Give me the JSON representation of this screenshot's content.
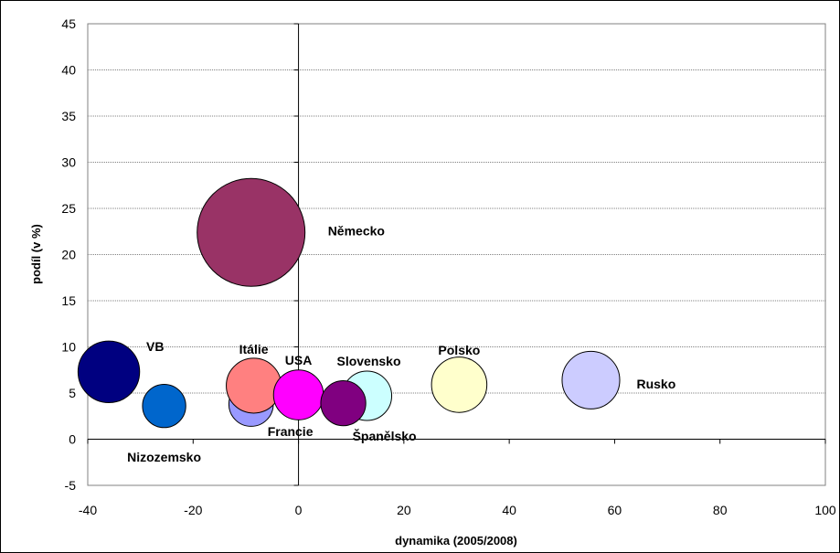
{
  "chart_data": {
    "type": "bubble",
    "xlabel": "dynamika (2005/2008)",
    "ylabel": "podíl (v %)",
    "xlim": [
      -40,
      100
    ],
    "ylim": [
      -5,
      45
    ],
    "xticks": [
      -40,
      -20,
      0,
      20,
      40,
      60,
      80,
      100
    ],
    "yticks": [
      -5,
      0,
      5,
      10,
      15,
      20,
      25,
      30,
      35,
      40,
      45
    ],
    "grid": "horizontal",
    "points": [
      {
        "label": "Německo",
        "x": -9,
        "y": 22.4,
        "size": 22.4,
        "color": "#993366"
      },
      {
        "label": "VB",
        "x": -36,
        "y": 7.3,
        "size": 7.3,
        "color": "#000080"
      },
      {
        "label": "Nizozemsko",
        "x": -25.5,
        "y": 3.6,
        "size": 3.6,
        "color": "#0066CC"
      },
      {
        "label": "Francie",
        "x": -9,
        "y": 3.8,
        "size": 3.8,
        "color": "#9999FF"
      },
      {
        "label": "Itálie",
        "x": -8.5,
        "y": 5.8,
        "size": 5.8,
        "color": "#FF8080"
      },
      {
        "label": "USA",
        "x": 0,
        "y": 4.8,
        "size": 4.8,
        "color": "#FF00FF"
      },
      {
        "label": "Slovensko",
        "x": 13,
        "y": 4.7,
        "size": 4.7,
        "color": "#CCFFFF"
      },
      {
        "label": "Španělsko",
        "x": 8.5,
        "y": 3.9,
        "size": 3.9,
        "color": "#800080"
      },
      {
        "label": "Polsko",
        "x": 30.5,
        "y": 5.9,
        "size": 5.9,
        "color": "#FFFFCC"
      },
      {
        "label": "Rusko",
        "x": 55.5,
        "y": 6.4,
        "size": 6.4,
        "color": "#CCCCFF"
      }
    ]
  }
}
